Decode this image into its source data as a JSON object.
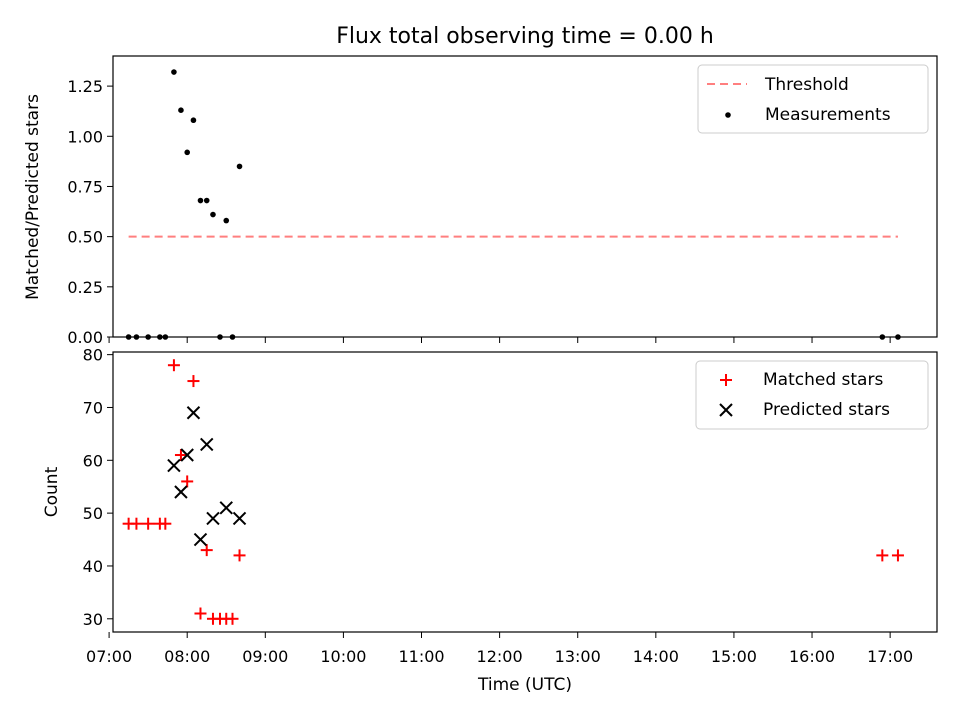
{
  "title": "Flux total observing time = 0.00 h",
  "colors": {
    "threshold": "#ff7f7f",
    "measurement": "#000000",
    "matched": "#ff0000",
    "predicted": "#000000"
  },
  "chart_data": [
    {
      "type": "scatter",
      "title": "Flux total observing time = 0.00 h",
      "ylabel": "Matched/Predicted stars",
      "xlim": [
        7.05,
        17.6
      ],
      "ylim": [
        0,
        1.4
      ],
      "yticks": [
        0.0,
        0.25,
        0.5,
        0.75,
        1.0,
        1.25
      ],
      "ytick_labels": [
        "0.00",
        "0.25",
        "0.50",
        "0.75",
        "1.00",
        "1.25"
      ],
      "legend": {
        "position": "top-right",
        "entries": [
          "Threshold",
          "Measurements"
        ]
      },
      "threshold": {
        "name": "Threshold",
        "y": 0.5,
        "x_range": [
          7.25,
          17.1
        ]
      },
      "series": [
        {
          "name": "Measurements",
          "points": [
            [
              7.25,
              0.0
            ],
            [
              7.35,
              0.0
            ],
            [
              7.5,
              0.0
            ],
            [
              7.65,
              0.0
            ],
            [
              7.72,
              0.0
            ],
            [
              7.83,
              1.32
            ],
            [
              7.92,
              1.13
            ],
            [
              8.0,
              0.92
            ],
            [
              8.08,
              1.08
            ],
            [
              8.17,
              0.68
            ],
            [
              8.25,
              0.68
            ],
            [
              8.33,
              0.61
            ],
            [
              8.42,
              0.0
            ],
            [
              8.5,
              0.58
            ],
            [
              8.58,
              0.0
            ],
            [
              8.67,
              0.85
            ],
            [
              16.9,
              0.0
            ],
            [
              17.1,
              0.0
            ]
          ]
        }
      ]
    },
    {
      "type": "scatter",
      "xlabel": "Time (UTC)",
      "ylabel": "Count",
      "xlim": [
        7.05,
        17.6
      ],
      "ylim": [
        27.5,
        80.5
      ],
      "xticks": [
        7,
        8,
        9,
        10,
        11,
        12,
        13,
        14,
        15,
        16,
        17
      ],
      "xtick_labels": [
        "07:00",
        "08:00",
        "09:00",
        "10:00",
        "11:00",
        "12:00",
        "13:00",
        "14:00",
        "15:00",
        "16:00",
        "17:00"
      ],
      "yticks": [
        30,
        40,
        50,
        60,
        70,
        80
      ],
      "ytick_labels": [
        "30",
        "40",
        "50",
        "60",
        "70",
        "80"
      ],
      "legend": {
        "position": "top-right",
        "entries": [
          "Matched stars",
          "Predicted stars"
        ]
      },
      "series": [
        {
          "name": "Matched stars",
          "marker": "+",
          "points": [
            [
              7.25,
              48
            ],
            [
              7.35,
              48
            ],
            [
              7.5,
              48
            ],
            [
              7.65,
              48
            ],
            [
              7.72,
              48
            ],
            [
              7.83,
              78
            ],
            [
              7.92,
              61
            ],
            [
              8.0,
              56
            ],
            [
              8.08,
              75
            ],
            [
              8.17,
              31
            ],
            [
              8.25,
              43
            ],
            [
              8.33,
              30
            ],
            [
              8.42,
              30
            ],
            [
              8.5,
              30
            ],
            [
              8.58,
              30
            ],
            [
              8.67,
              42
            ],
            [
              16.9,
              42
            ],
            [
              17.1,
              42
            ]
          ]
        },
        {
          "name": "Predicted stars",
          "marker": "x",
          "points": [
            [
              7.83,
              59
            ],
            [
              7.92,
              54
            ],
            [
              8.0,
              61
            ],
            [
              8.08,
              69
            ],
            [
              8.17,
              45
            ],
            [
              8.25,
              63
            ],
            [
              8.33,
              49
            ],
            [
              8.5,
              51
            ],
            [
              8.67,
              49
            ]
          ]
        }
      ]
    }
  ]
}
